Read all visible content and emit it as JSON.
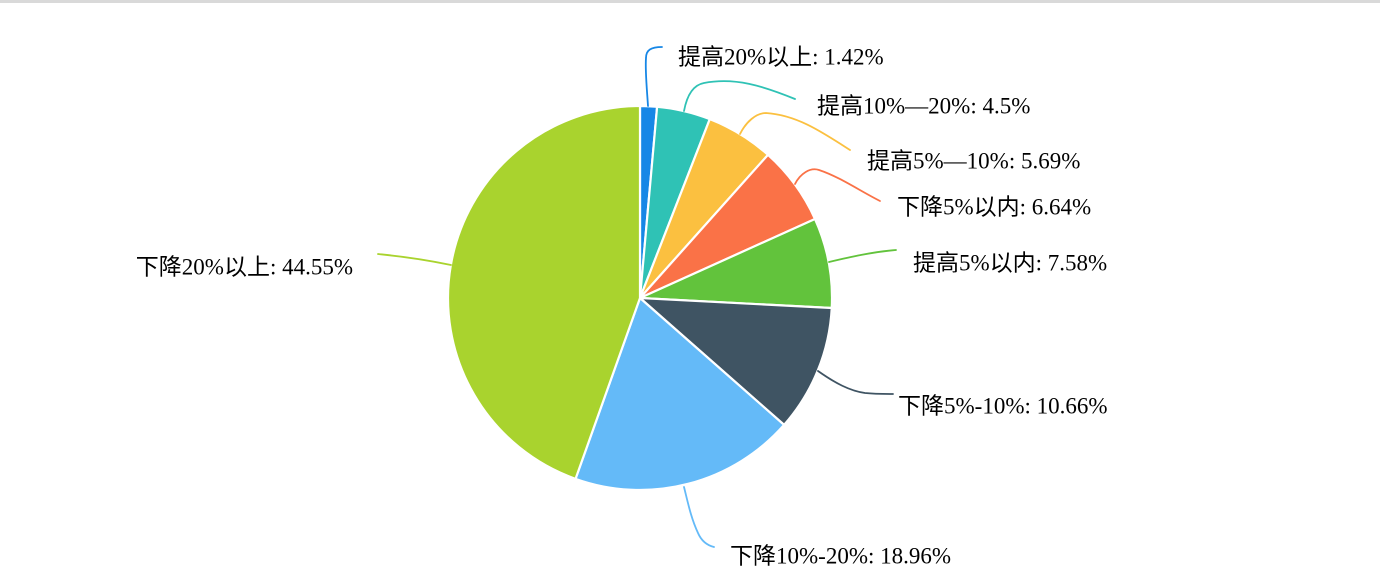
{
  "page": {
    "background": "#FFFFFF",
    "top_border_color": "#D9D9D9",
    "label_text_color": "#000000"
  },
  "chart_data": {
    "type": "pie",
    "title": "",
    "legend_position": "none",
    "label_style": "outside-with-leader-lines",
    "start_angle_deg": 0,
    "direction": "clockwise",
    "unit": "%",
    "categories": [
      "提高20%以上",
      "提高10%—20%",
      "提高5%—10%",
      "下降5%以内",
      "提高5%以内",
      "下降5%-10%",
      "下降10%-20%",
      "下降20%以上"
    ],
    "values": [
      1.42,
      4.5,
      5.69,
      6.64,
      7.58,
      10.66,
      18.96,
      44.55
    ],
    "slices": [
      {
        "label": "提高20%以上",
        "value": 1.42,
        "display": "提高20%以上: 1.42%",
        "color": "#1787E6"
      },
      {
        "label": "提高10%—20%",
        "value": 4.5,
        "display": "提高10%—20%: 4.5%",
        "color": "#2FC2B5"
      },
      {
        "label": "提高5%—10%",
        "value": 5.69,
        "display": "提高5%—10%: 5.69%",
        "color": "#FBC040"
      },
      {
        "label": "下降5%以内",
        "value": 6.64,
        "display": "下降5%以内: 6.64%",
        "color": "#FA7247"
      },
      {
        "label": "提高5%以内",
        "value": 7.58,
        "display": "提高5%以内: 7.58%",
        "color": "#62C33C"
      },
      {
        "label": "下降5%-10%",
        "value": 10.66,
        "display": "下降5%-10%: 10.66%",
        "color": "#3F5463"
      },
      {
        "label": "下降10%-20%",
        "value": 18.96,
        "display": "下降10%-20%: 18.96%",
        "color": "#64BAF8"
      },
      {
        "label": "下降20%以上",
        "value": 44.55,
        "display": "下降20%以上: 44.55%",
        "color": "#A9D32E"
      }
    ]
  }
}
